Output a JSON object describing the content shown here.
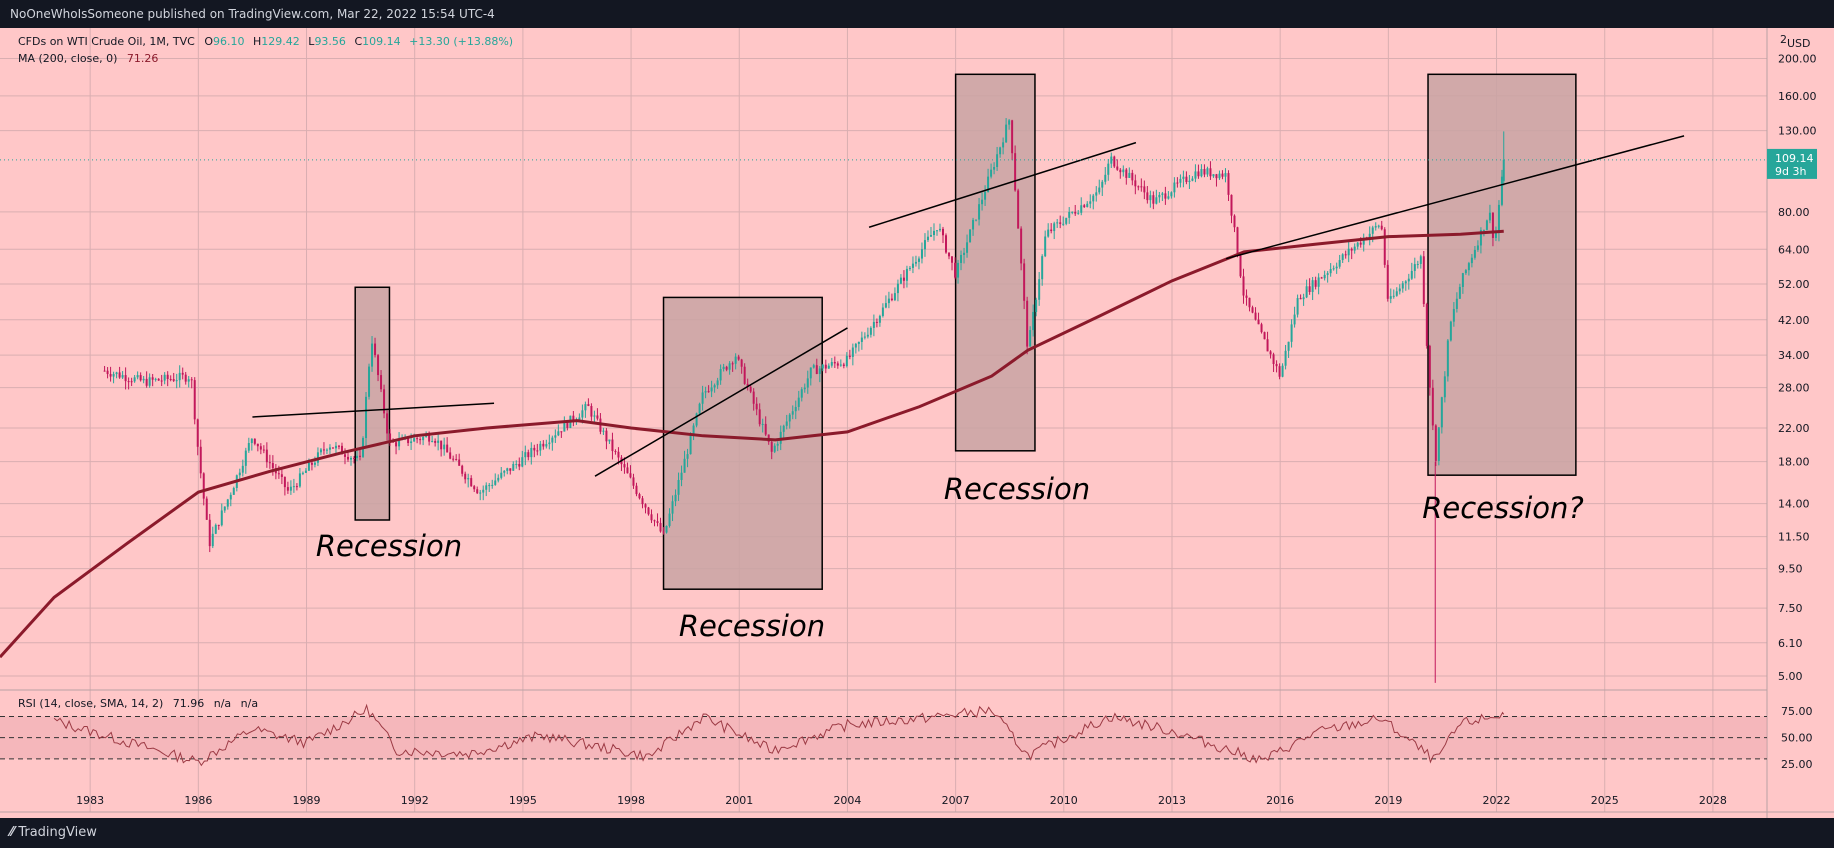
{
  "header": {
    "published": "NoOneWhoIsSomeone published on TradingView.com, Mar 22, 2022 15:54 UTC-4"
  },
  "legend": {
    "symbol": "CFDs on WTI Crude Oil, 1M, TVC",
    "o_label": "O",
    "o_value": "96.10",
    "h_label": "H",
    "h_value": "129.42",
    "l_label": "L",
    "l_value": "93.56",
    "c_label": "C",
    "c_value": "109.14",
    "change": "+13.30 (+13.88%)",
    "ma_label": "MA (200, close, 0)",
    "ma_value": "71.26",
    "rsi_label": "RSI (14, close, SMA, 14, 2)",
    "rsi_value": "71.96",
    "rsi_na1": "n/a",
    "rsi_na2": "n/a"
  },
  "price_axis": {
    "currency": "USD",
    "top_label": "2",
    "ticks": [
      "200.00",
      "160.00",
      "130.00",
      "80.00",
      "64.00",
      "52.00",
      "42.00",
      "34.00",
      "28.00",
      "22.00",
      "18.00",
      "14.00",
      "11.50",
      "9.50",
      "7.50",
      "6.10",
      "5.00"
    ],
    "last_price": "109.14",
    "countdown": "9d 3h"
  },
  "rsi_axis": {
    "ticks": [
      "75.00",
      "50.00",
      "25.00"
    ]
  },
  "time_axis": {
    "ticks": [
      "1983",
      "1986",
      "1989",
      "1992",
      "1995",
      "1998",
      "2001",
      "2004",
      "2007",
      "2010",
      "2013",
      "2016",
      "2019",
      "2022",
      "2025",
      "2028"
    ]
  },
  "annotations": {
    "recession_1": "Recession",
    "recession_2": "Recession",
    "recession_3": "Recession",
    "recession_4": "Recession?"
  },
  "footer": {
    "brand": "TradingView"
  },
  "colors": {
    "background": "#ffc7c8",
    "candle_up": "#26a69a",
    "candle_down": "#c2185b",
    "ma_line": "#8b1a2b",
    "rsi_line": "#9c3a44",
    "box_fill": "#c9a3a3",
    "last_price_bg": "#26a69a"
  },
  "chart_data": {
    "type": "candlestick",
    "title": "CFDs on WTI Crude Oil, 1M, TVC",
    "x_range": [
      1980.5,
      2029.5
    ],
    "y_scale": "log",
    "y_range": [
      4.6,
      240
    ],
    "ohlc_last": {
      "open": 96.1,
      "high": 129.42,
      "low": 93.56,
      "close": 109.14
    },
    "close_path": [
      {
        "x": 1983.4,
        "y": 31
      },
      {
        "x": 1984.5,
        "y": 29
      },
      {
        "x": 1985.8,
        "y": 30
      },
      {
        "x": 1986.0,
        "y": 19
      },
      {
        "x": 1986.3,
        "y": 11
      },
      {
        "x": 1986.9,
        "y": 15
      },
      {
        "x": 1987.5,
        "y": 21
      },
      {
        "x": 1988.5,
        "y": 15
      },
      {
        "x": 1989.6,
        "y": 20
      },
      {
        "x": 1990.5,
        "y": 18
      },
      {
        "x": 1990.8,
        "y": 38
      },
      {
        "x": 1991.3,
        "y": 20
      },
      {
        "x": 1992.5,
        "y": 21
      },
      {
        "x": 1993.8,
        "y": 15
      },
      {
        "x": 1994.9,
        "y": 18
      },
      {
        "x": 1996.8,
        "y": 25
      },
      {
        "x": 1998.0,
        "y": 16
      },
      {
        "x": 1998.9,
        "y": 11.5
      },
      {
        "x": 2000.0,
        "y": 27
      },
      {
        "x": 2000.9,
        "y": 34
      },
      {
        "x": 2001.9,
        "y": 19
      },
      {
        "x": 2003.0,
        "y": 31
      },
      {
        "x": 2004.0,
        "y": 33
      },
      {
        "x": 2005.0,
        "y": 45
      },
      {
        "x": 2006.5,
        "y": 74
      },
      {
        "x": 2007.0,
        "y": 55
      },
      {
        "x": 2008.5,
        "y": 140
      },
      {
        "x": 2009.0,
        "y": 35
      },
      {
        "x": 2009.5,
        "y": 70
      },
      {
        "x": 2011.0,
        "y": 91
      },
      {
        "x": 2011.3,
        "y": 110
      },
      {
        "x": 2012.5,
        "y": 85
      },
      {
        "x": 2013.7,
        "y": 102
      },
      {
        "x": 2014.5,
        "y": 100
      },
      {
        "x": 2015.0,
        "y": 48
      },
      {
        "x": 2016.0,
        "y": 30
      },
      {
        "x": 2016.5,
        "y": 48
      },
      {
        "x": 2018.8,
        "y": 75
      },
      {
        "x": 2019.0,
        "y": 46
      },
      {
        "x": 2019.9,
        "y": 61
      },
      {
        "x": 2020.3,
        "y": 18
      },
      {
        "x": 2020.7,
        "y": 40
      },
      {
        "x": 2021.0,
        "y": 52
      },
      {
        "x": 2021.8,
        "y": 80
      },
      {
        "x": 2021.95,
        "y": 66
      },
      {
        "x": 2022.2,
        "y": 109.14
      }
    ],
    "ma_200": [
      {
        "x": 1980.5,
        "y": 5.6
      },
      {
        "x": 1982.0,
        "y": 8.0
      },
      {
        "x": 1984.0,
        "y": 11.0
      },
      {
        "x": 1986.0,
        "y": 15
      },
      {
        "x": 1988.0,
        "y": 17
      },
      {
        "x": 1990.0,
        "y": 19
      },
      {
        "x": 1992.0,
        "y": 21
      },
      {
        "x": 1994.0,
        "y": 22
      },
      {
        "x": 1996.5,
        "y": 23
      },
      {
        "x": 1998.0,
        "y": 22
      },
      {
        "x": 2000.0,
        "y": 21
      },
      {
        "x": 2002.0,
        "y": 20.5
      },
      {
        "x": 2004.0,
        "y": 21.5
      },
      {
        "x": 2006.0,
        "y": 25
      },
      {
        "x": 2008.0,
        "y": 30
      },
      {
        "x": 2009.0,
        "y": 35
      },
      {
        "x": 2011.0,
        "y": 43
      },
      {
        "x": 2013.0,
        "y": 53
      },
      {
        "x": 2015.0,
        "y": 63
      },
      {
        "x": 2017.0,
        "y": 66
      },
      {
        "x": 2019.0,
        "y": 69
      },
      {
        "x": 2021.0,
        "y": 70
      },
      {
        "x": 2022.2,
        "y": 71.26
      }
    ],
    "rsi": {
      "upper": 70,
      "mid": 50,
      "lower": 30,
      "last": 71.96,
      "points": [
        {
          "x": 1982.0,
          "y": 66
        },
        {
          "x": 1984.0,
          "y": 46
        },
        {
          "x": 1986.0,
          "y": 27
        },
        {
          "x": 1987.5,
          "y": 58
        },
        {
          "x": 1989.0,
          "y": 45
        },
        {
          "x": 1990.7,
          "y": 77
        },
        {
          "x": 1991.5,
          "y": 38
        },
        {
          "x": 1993.5,
          "y": 35
        },
        {
          "x": 1995.5,
          "y": 52
        },
        {
          "x": 1998.5,
          "y": 32
        },
        {
          "x": 2000.0,
          "y": 70
        },
        {
          "x": 2001.9,
          "y": 38
        },
        {
          "x": 2004.0,
          "y": 62
        },
        {
          "x": 2006.0,
          "y": 68
        },
        {
          "x": 2008.0,
          "y": 76
        },
        {
          "x": 2009.0,
          "y": 33
        },
        {
          "x": 2011.3,
          "y": 70
        },
        {
          "x": 2013.0,
          "y": 56
        },
        {
          "x": 2015.5,
          "y": 28
        },
        {
          "x": 2017.0,
          "y": 55
        },
        {
          "x": 2018.8,
          "y": 68
        },
        {
          "x": 2020.3,
          "y": 28
        },
        {
          "x": 2021.0,
          "y": 63
        },
        {
          "x": 2022.2,
          "y": 71.96
        }
      ]
    },
    "trendlines": [
      {
        "x1": 1987.5,
        "y1": 23.5,
        "x2": 1994.2,
        "y2": 25.5
      },
      {
        "x1": 1997.0,
        "y1": 16.5,
        "x2": 2004.0,
        "y2": 40
      },
      {
        "x1": 2004.6,
        "y1": 73,
        "x2": 2012.0,
        "y2": 121
      },
      {
        "x1": 2014.5,
        "y1": 60.5,
        "x2": 2027.2,
        "y2": 126
      }
    ],
    "recession_boxes": [
      {
        "x1": 1990.35,
        "x2": 1991.3,
        "y_low": 12.7,
        "y_high": 51
      },
      {
        "x1": 1998.9,
        "x2": 2003.3,
        "y_low": 8.4,
        "y_high": 48
      },
      {
        "x1": 2007.0,
        "x2": 2009.2,
        "y_low": 19.2,
        "y_high": 182
      },
      {
        "x1": 2020.1,
        "x2": 2024.2,
        "y_low": 16.6,
        "y_high": 182
      }
    ]
  }
}
